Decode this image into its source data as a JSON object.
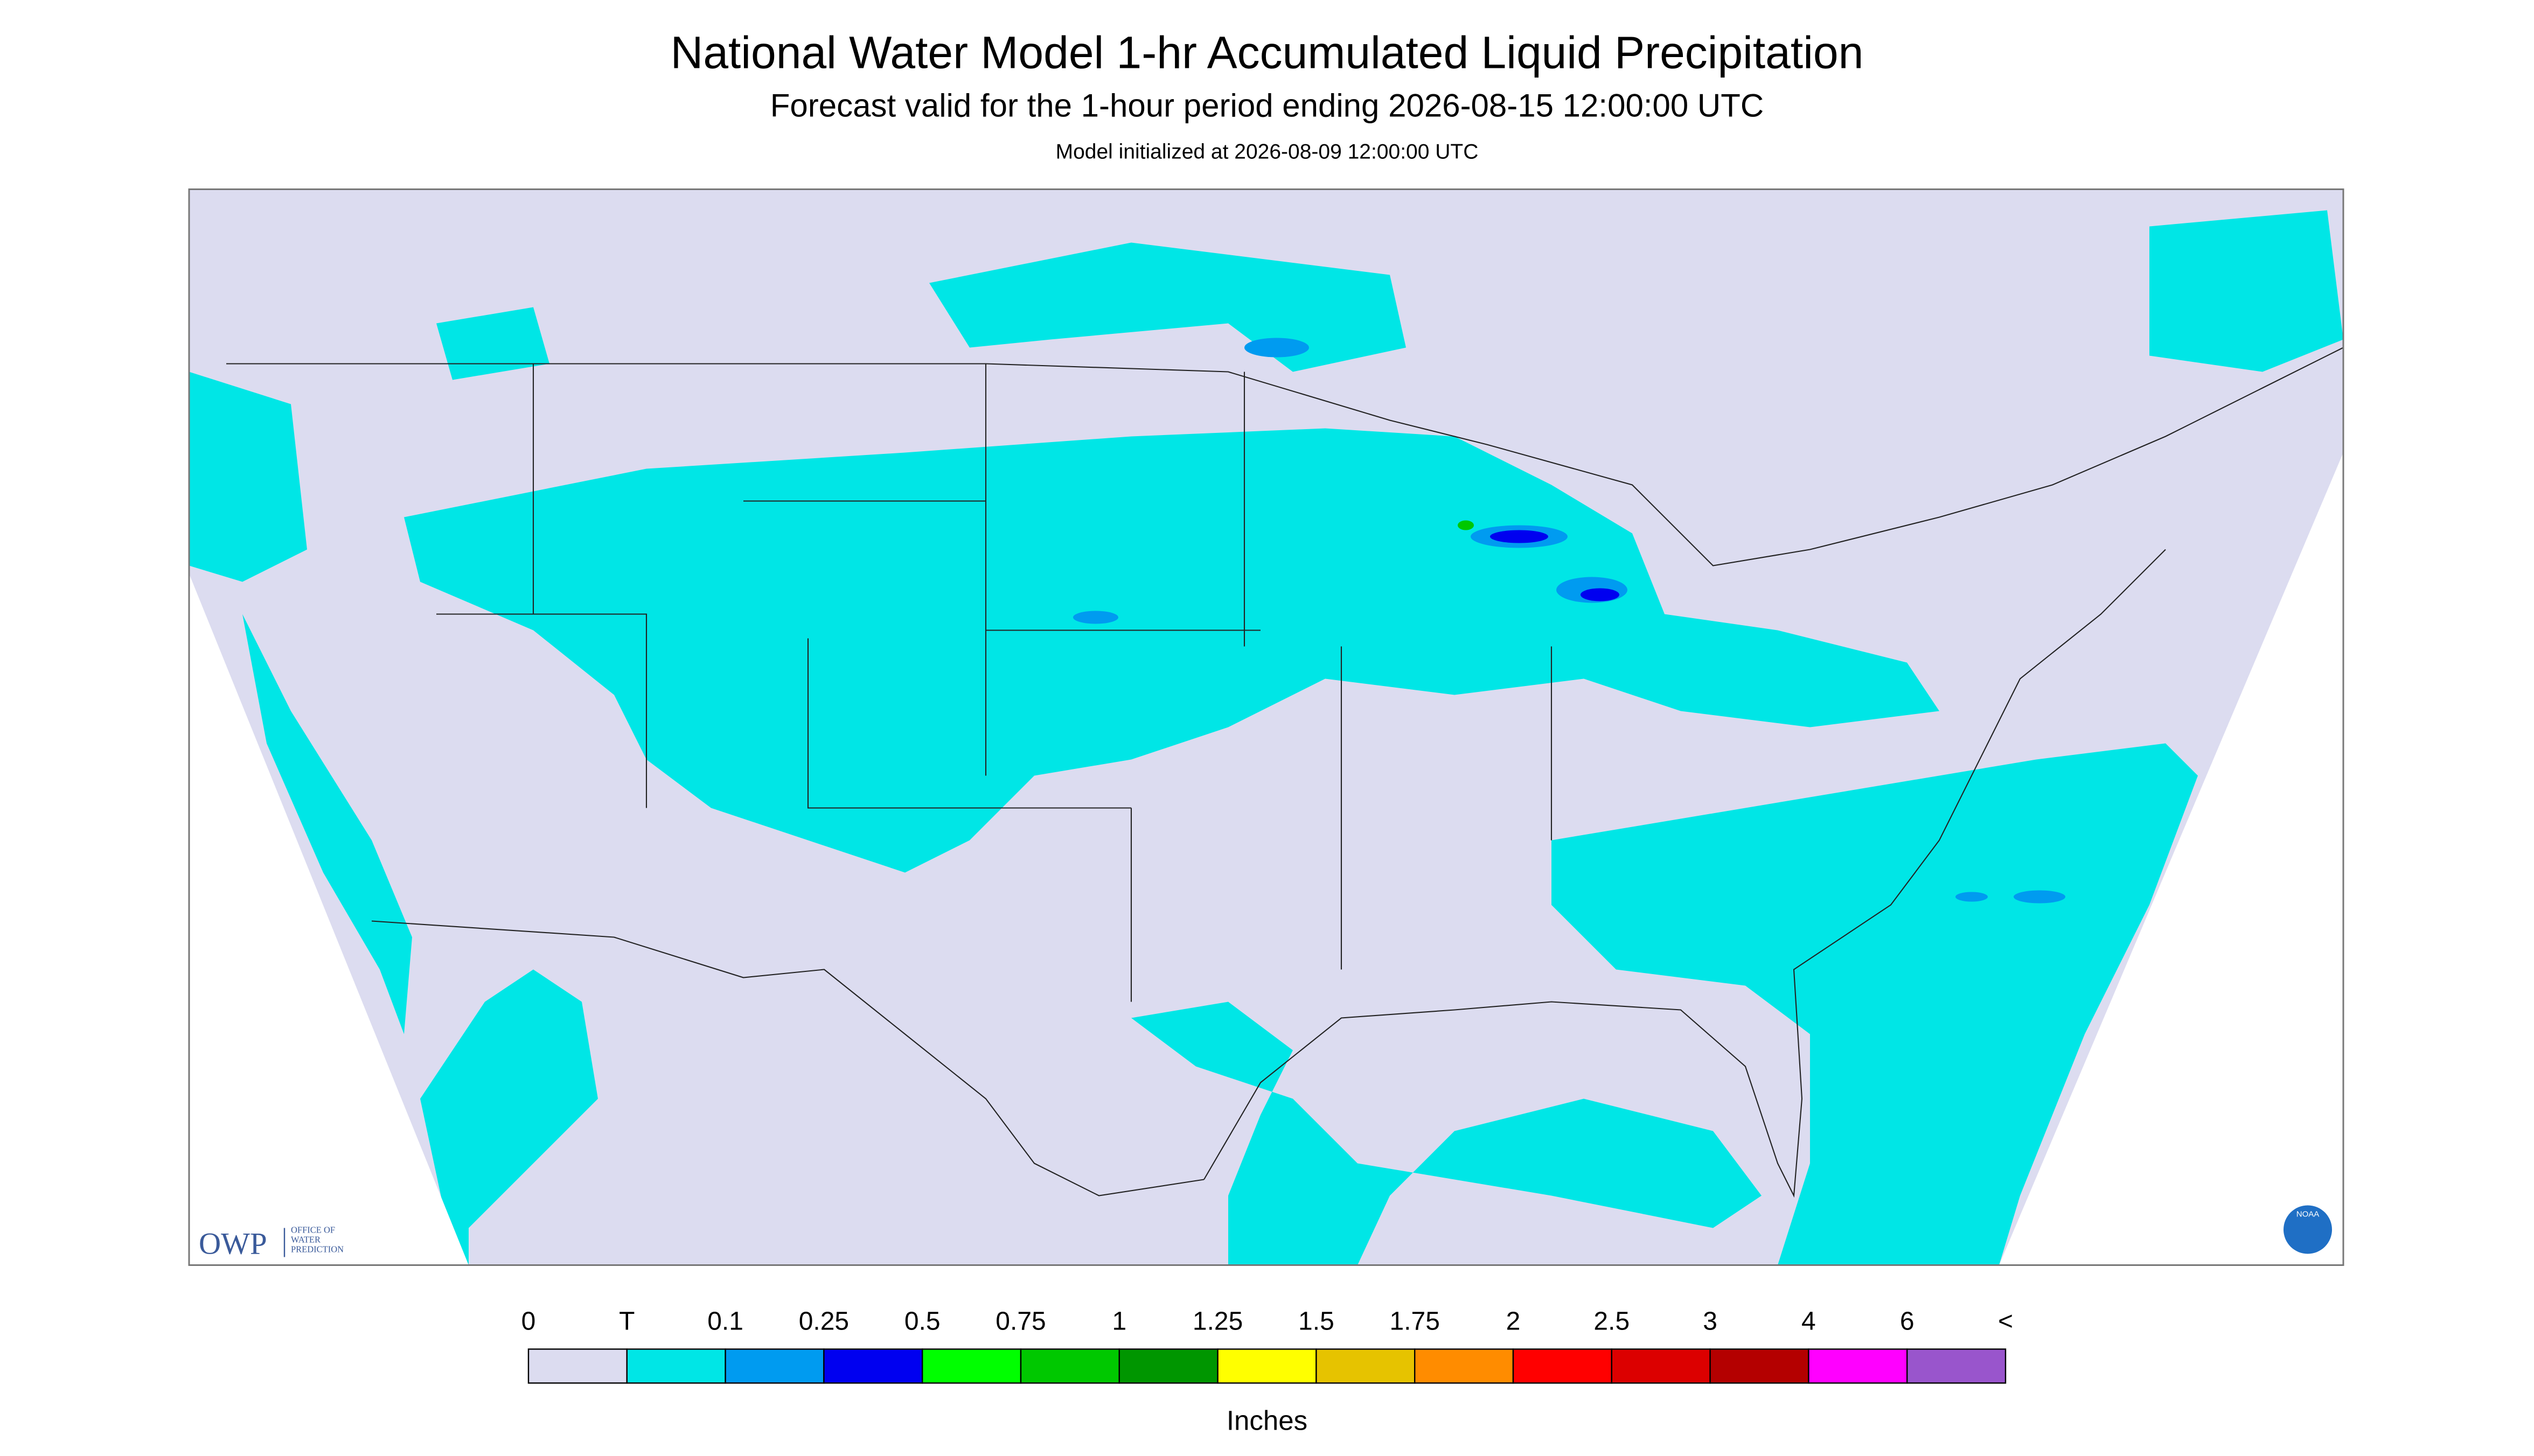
{
  "header": {
    "title": "National Water Model 1-hr Accumulated Liquid Precipitation",
    "subtitle": "Forecast valid for the 1-hour period ending 2026-08-15 12:00:00 UTC",
    "note": "Model initialized at 2026-08-09 12:00:00 UTC"
  },
  "map": {
    "colorbar": {
      "labels": [
        "0",
        "T",
        "0.1",
        "0.25",
        "0.5",
        "0.75",
        "1",
        "1.25",
        "1.5",
        "1.75",
        "2",
        "2.5",
        "3",
        "4",
        "6",
        "<"
      ],
      "colors": [
        "#dcdcf0",
        "#00e6e6",
        "#009bf0",
        "#0000f0",
        "#00ff00",
        "#00c800",
        "#009600",
        "#ffff00",
        "#e6c300",
        "#ff8c00",
        "#ff0000",
        "#dc0000",
        "#b40000",
        "#ff00ff",
        "#9955cc"
      ],
      "unit": "Inches"
    },
    "logos": {
      "owp": "OWP",
      "owp_text": [
        "OFFICE OF",
        "WATER",
        "PREDICTION"
      ],
      "noaa": "NOAA"
    }
  }
}
